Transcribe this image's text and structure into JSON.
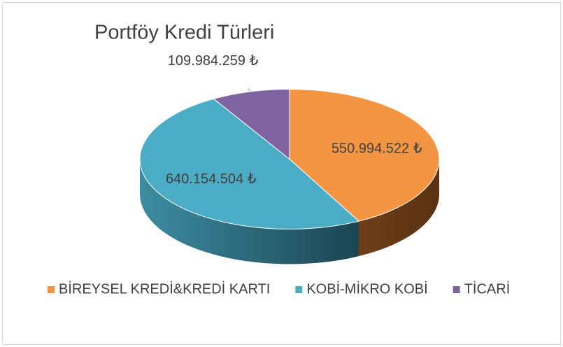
{
  "chart_data": {
    "type": "pie3d",
    "title": "Portföy Kredi Türleri",
    "categories": [
      "BİREYSEL KREDİ&KREDİ KARTI",
      "KOBİ-MİKRO KOBİ",
      "TİCARİ"
    ],
    "values": [
      550994522,
      640154504,
      109984259
    ],
    "value_labels": [
      "550.994.522 ₺",
      "640.154.504 ₺",
      "109.984.259 ₺"
    ],
    "colors": [
      "#f39542",
      "#4bacc6",
      "#8064a2"
    ],
    "legend": "bottom"
  }
}
